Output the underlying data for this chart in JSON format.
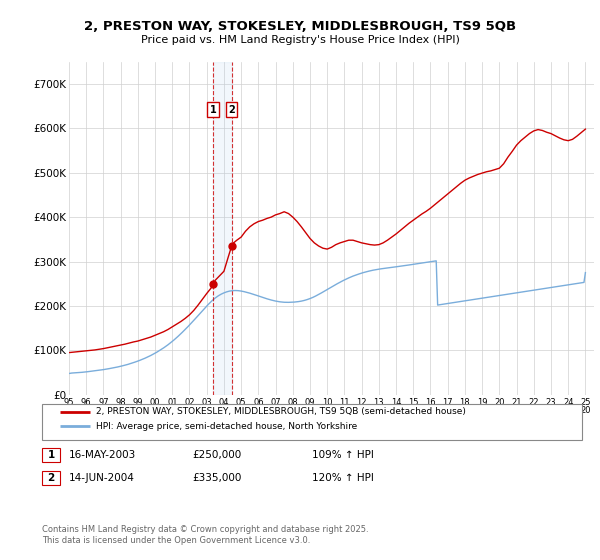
{
  "title_line1": "2, PRESTON WAY, STOKESLEY, MIDDLESBROUGH, TS9 5QB",
  "title_line2": "Price paid vs. HM Land Registry's House Price Index (HPI)",
  "ylim": [
    0,
    750000
  ],
  "yticks": [
    0,
    100000,
    200000,
    300000,
    400000,
    500000,
    600000,
    700000
  ],
  "ytick_labels": [
    "£0",
    "£100K",
    "£200K",
    "£300K",
    "£400K",
    "£500K",
    "£600K",
    "£700K"
  ],
  "xlim_start": 1995.0,
  "xlim_end": 2025.5,
  "sale1_date": 2003.37,
  "sale1_price": 250000,
  "sale1_label": "1",
  "sale1_date_str": "16-MAY-2003",
  "sale1_amount_str": "£250,000",
  "sale1_hpi_str": "109% ↑ HPI",
  "sale2_date": 2004.45,
  "sale2_price": 335000,
  "sale2_label": "2",
  "sale2_date_str": "14-JUN-2004",
  "sale2_amount_str": "£335,000",
  "sale2_hpi_str": "120% ↑ HPI",
  "hpi_color": "#7aaddb",
  "price_color": "#cc0000",
  "legend_label_price": "2, PRESTON WAY, STOKESLEY, MIDDLESBROUGH, TS9 5QB (semi-detached house)",
  "legend_label_hpi": "HPI: Average price, semi-detached house, North Yorkshire",
  "footnote": "Contains HM Land Registry data © Crown copyright and database right 2025.\nThis data is licensed under the Open Government Licence v3.0.",
  "hpi_x": [
    1995.0,
    1995.083,
    1995.167,
    1995.25,
    1995.333,
    1995.417,
    1995.5,
    1995.583,
    1995.667,
    1995.75,
    1995.833,
    1995.917,
    1996.0,
    1996.083,
    1996.167,
    1996.25,
    1996.333,
    1996.417,
    1996.5,
    1996.583,
    1996.667,
    1996.75,
    1996.833,
    1996.917,
    1997.0,
    1997.083,
    1997.167,
    1997.25,
    1997.333,
    1997.417,
    1997.5,
    1997.583,
    1997.667,
    1997.75,
    1997.833,
    1997.917,
    1998.0,
    1998.083,
    1998.167,
    1998.25,
    1998.333,
    1998.417,
    1998.5,
    1998.583,
    1998.667,
    1998.75,
    1998.833,
    1998.917,
    1999.0,
    1999.083,
    1999.167,
    1999.25,
    1999.333,
    1999.417,
    1999.5,
    1999.583,
    1999.667,
    1999.75,
    1999.833,
    1999.917,
    2000.0,
    2000.083,
    2000.167,
    2000.25,
    2000.333,
    2000.417,
    2000.5,
    2000.583,
    2000.667,
    2000.75,
    2000.833,
    2000.917,
    2001.0,
    2001.083,
    2001.167,
    2001.25,
    2001.333,
    2001.417,
    2001.5,
    2001.583,
    2001.667,
    2001.75,
    2001.833,
    2001.917,
    2002.0,
    2002.083,
    2002.167,
    2002.25,
    2002.333,
    2002.417,
    2002.5,
    2002.583,
    2002.667,
    2002.75,
    2002.833,
    2002.917,
    2003.0,
    2003.083,
    2003.167,
    2003.25,
    2003.333,
    2003.417,
    2003.5,
    2003.583,
    2003.667,
    2003.75,
    2003.833,
    2003.917,
    2004.0,
    2004.083,
    2004.167,
    2004.25,
    2004.333,
    2004.417,
    2004.5,
    2004.583,
    2004.667,
    2004.75,
    2004.833,
    2004.917,
    2005.0,
    2005.083,
    2005.167,
    2005.25,
    2005.333,
    2005.417,
    2005.5,
    2005.583,
    2005.667,
    2005.75,
    2005.833,
    2005.917,
    2006.0,
    2006.083,
    2006.167,
    2006.25,
    2006.333,
    2006.417,
    2006.5,
    2006.583,
    2006.667,
    2006.75,
    2006.833,
    2006.917,
    2007.0,
    2007.083,
    2007.167,
    2007.25,
    2007.333,
    2007.417,
    2007.5,
    2007.583,
    2007.667,
    2007.75,
    2007.833,
    2007.917,
    2008.0,
    2008.083,
    2008.167,
    2008.25,
    2008.333,
    2008.417,
    2008.5,
    2008.583,
    2008.667,
    2008.75,
    2008.833,
    2008.917,
    2009.0,
    2009.083,
    2009.167,
    2009.25,
    2009.333,
    2009.417,
    2009.5,
    2009.583,
    2009.667,
    2009.75,
    2009.833,
    2009.917,
    2010.0,
    2010.083,
    2010.167,
    2010.25,
    2010.333,
    2010.417,
    2010.5,
    2010.583,
    2010.667,
    2010.75,
    2010.833,
    2010.917,
    2011.0,
    2011.083,
    2011.167,
    2011.25,
    2011.333,
    2011.417,
    2011.5,
    2011.583,
    2011.667,
    2011.75,
    2011.833,
    2011.917,
    2012.0,
    2012.083,
    2012.167,
    2012.25,
    2012.333,
    2012.417,
    2012.5,
    2012.583,
    2012.667,
    2012.75,
    2012.833,
    2012.917,
    2013.0,
    2013.083,
    2013.167,
    2013.25,
    2013.333,
    2013.417,
    2013.5,
    2013.583,
    2013.667,
    2013.75,
    2013.833,
    2013.917,
    2014.0,
    2014.083,
    2014.167,
    2014.25,
    2014.333,
    2014.417,
    2014.5,
    2014.583,
    2014.667,
    2014.75,
    2014.833,
    2014.917,
    2015.0,
    2015.083,
    2015.167,
    2015.25,
    2015.333,
    2015.417,
    2015.5,
    2015.583,
    2015.667,
    2015.75,
    2015.833,
    2015.917,
    2016.0,
    2016.083,
    2016.167,
    2016.25,
    2016.333,
    2016.417,
    2016.5,
    2016.583,
    2016.667,
    2016.75,
    2016.833,
    2016.917,
    2017.0,
    2017.083,
    2017.167,
    2017.25,
    2017.333,
    2017.417,
    2017.5,
    2017.583,
    2017.667,
    2017.75,
    2017.833,
    2017.917,
    2018.0,
    2018.083,
    2018.167,
    2018.25,
    2018.333,
    2018.417,
    2018.5,
    2018.583,
    2018.667,
    2018.75,
    2018.833,
    2018.917,
    2019.0,
    2019.083,
    2019.167,
    2019.25,
    2019.333,
    2019.417,
    2019.5,
    2019.583,
    2019.667,
    2019.75,
    2019.833,
    2019.917,
    2020.0,
    2020.083,
    2020.167,
    2020.25,
    2020.333,
    2020.417,
    2020.5,
    2020.583,
    2020.667,
    2020.75,
    2020.833,
    2020.917,
    2021.0,
    2021.083,
    2021.167,
    2021.25,
    2021.333,
    2021.417,
    2021.5,
    2021.583,
    2021.667,
    2021.75,
    2021.833,
    2021.917,
    2022.0,
    2022.083,
    2022.167,
    2022.25,
    2022.333,
    2022.417,
    2022.5,
    2022.583,
    2022.667,
    2022.75,
    2022.833,
    2022.917,
    2023.0,
    2023.083,
    2023.167,
    2023.25,
    2023.333,
    2023.417,
    2023.5,
    2023.583,
    2023.667,
    2023.75,
    2023.833,
    2023.917,
    2024.0,
    2024.083,
    2024.167,
    2024.25,
    2024.333,
    2024.417,
    2024.5,
    2024.583,
    2024.667,
    2024.75,
    2024.833,
    2024.917,
    2025.0
  ],
  "hpi_y": [
    48000,
    48500,
    49000,
    49200,
    49400,
    49600,
    50000,
    50200,
    50400,
    50600,
    50900,
    51200,
    51600,
    52000,
    52500,
    52900,
    53300,
    53700,
    54200,
    54600,
    55000,
    55400,
    55800,
    56200,
    56700,
    57200,
    57700,
    58300,
    58900,
    59500,
    60100,
    60700,
    61300,
    62000,
    62700,
    63400,
    64200,
    65000,
    65800,
    66600,
    67500,
    68400,
    69400,
    70400,
    71400,
    72500,
    73600,
    74700,
    75900,
    77100,
    78400,
    79700,
    81000,
    82400,
    83900,
    85400,
    86900,
    88500,
    90200,
    91900,
    93600,
    95500,
    97500,
    99500,
    101500,
    103500,
    105700,
    107900,
    110200,
    112600,
    115100,
    117600,
    120200,
    122900,
    125700,
    128600,
    131500,
    134500,
    137600,
    140700,
    143900,
    147100,
    150400,
    153700,
    157100,
    160500,
    164000,
    167500,
    171100,
    174700,
    178300,
    181900,
    185500,
    189100,
    192700,
    196200,
    199700,
    203100,
    206400,
    209600,
    212600,
    215400,
    218000,
    220400,
    222600,
    224600,
    226400,
    228000,
    229400,
    230700,
    231800,
    232700,
    233500,
    234000,
    234400,
    234600,
    234700,
    234600,
    234400,
    234000,
    233500,
    232900,
    232200,
    231400,
    230600,
    229700,
    228800,
    227800,
    226800,
    225800,
    224700,
    223600,
    222500,
    221400,
    220300,
    219200,
    218100,
    217100,
    216100,
    215100,
    214200,
    213300,
    212500,
    211700,
    211000,
    210400,
    209800,
    209300,
    208900,
    208600,
    208300,
    208200,
    208100,
    208100,
    208200,
    208300,
    208500,
    208700,
    209000,
    209400,
    209800,
    210300,
    210900,
    211600,
    212400,
    213300,
    214300,
    215400,
    216600,
    217900,
    219300,
    220800,
    222400,
    224100,
    225800,
    227600,
    229400,
    231200,
    233100,
    235000,
    236900,
    238800,
    240700,
    242600,
    244500,
    246400,
    248200,
    250000,
    251800,
    253500,
    255200,
    256900,
    258500,
    260100,
    261600,
    263100,
    264500,
    265900,
    267200,
    268400,
    269600,
    270700,
    271800,
    272900,
    273900,
    274900,
    275800,
    276700,
    277500,
    278300,
    279100,
    279800,
    280500,
    281100,
    281700,
    282300,
    282800,
    283300,
    283800,
    284200,
    284600,
    285100,
    285500,
    285900,
    286400,
    286800,
    287200,
    287700,
    288100,
    288600,
    289000,
    289500,
    289900,
    290400,
    290800,
    291300,
    291700,
    292200,
    292700,
    293100,
    293600,
    294000,
    294500,
    295000,
    295500,
    296000,
    296500,
    297000,
    297500,
    298000,
    298500,
    299000,
    299500,
    300000,
    300500,
    301000,
    301500,
    202000,
    202500,
    203000,
    203500,
    204000,
    204500,
    205000,
    205500,
    206000,
    206500,
    207000,
    207500,
    208000,
    208500,
    209000,
    209500,
    210000,
    210500,
    211000,
    211500,
    212000,
    212500,
    213000,
    213500,
    214000,
    214500,
    215000,
    215500,
    216000,
    216500,
    217000,
    217500,
    218000,
    218500,
    219000,
    219500,
    220000,
    220500,
    221000,
    221500,
    222000,
    222500,
    223000,
    223500,
    224000,
    224500,
    225000,
    225500,
    226000,
    226500,
    227000,
    227500,
    228000,
    228500,
    229000,
    229500,
    230000,
    230500,
    231000,
    231500,
    232000,
    232500,
    233000,
    233500,
    234000,
    234500,
    235000,
    235500,
    236000,
    236500,
    237000,
    237500,
    238000,
    238500,
    239000,
    239500,
    240000,
    240500,
    241000,
    241500,
    242000,
    242500,
    243000,
    243500,
    244000,
    244500,
    245000,
    245500,
    246000,
    246500,
    247000,
    247500,
    248000,
    248500,
    249000,
    249500,
    250000,
    250500,
    251000,
    251500,
    252000,
    252500,
    253000,
    275000
  ],
  "price_x": [
    1995.0,
    1995.25,
    1995.5,
    1995.75,
    1996.0,
    1996.25,
    1996.5,
    1996.75,
    1997.0,
    1997.25,
    1997.5,
    1997.75,
    1998.0,
    1998.25,
    1998.5,
    1998.75,
    1999.0,
    1999.25,
    1999.5,
    1999.75,
    2000.0,
    2000.25,
    2000.5,
    2000.75,
    2001.0,
    2001.25,
    2001.5,
    2001.75,
    2002.0,
    2002.25,
    2002.5,
    2002.75,
    2003.0,
    2003.25,
    2003.37,
    2003.5,
    2003.75,
    2004.0,
    2004.25,
    2004.45,
    2004.5,
    2004.75,
    2005.0,
    2005.25,
    2005.5,
    2005.75,
    2006.0,
    2006.25,
    2006.5,
    2006.75,
    2007.0,
    2007.25,
    2007.5,
    2007.75,
    2008.0,
    2008.25,
    2008.5,
    2008.75,
    2009.0,
    2009.25,
    2009.5,
    2009.75,
    2010.0,
    2010.25,
    2010.5,
    2010.75,
    2011.0,
    2011.25,
    2011.5,
    2011.75,
    2012.0,
    2012.25,
    2012.5,
    2012.75,
    2013.0,
    2013.25,
    2013.5,
    2013.75,
    2014.0,
    2014.25,
    2014.5,
    2014.75,
    2015.0,
    2015.25,
    2015.5,
    2015.75,
    2016.0,
    2016.25,
    2016.5,
    2016.75,
    2017.0,
    2017.25,
    2017.5,
    2017.75,
    2018.0,
    2018.25,
    2018.5,
    2018.75,
    2019.0,
    2019.25,
    2019.5,
    2019.75,
    2020.0,
    2020.25,
    2020.5,
    2020.75,
    2021.0,
    2021.25,
    2021.5,
    2021.75,
    2022.0,
    2022.25,
    2022.5,
    2022.75,
    2023.0,
    2023.25,
    2023.5,
    2023.75,
    2024.0,
    2024.25,
    2024.5,
    2024.75,
    2025.0
  ],
  "price_y": [
    95000,
    96000,
    97000,
    98000,
    99000,
    100000,
    101000,
    102500,
    104000,
    106000,
    108000,
    110000,
    112000,
    114000,
    116500,
    119000,
    121000,
    124000,
    127000,
    130000,
    134000,
    138000,
    142000,
    147000,
    153000,
    159000,
    165000,
    172000,
    180000,
    190000,
    202000,
    215000,
    228000,
    240000,
    250000,
    258000,
    268000,
    278000,
    310000,
    335000,
    340000,
    348000,
    355000,
    368000,
    378000,
    385000,
    390000,
    393000,
    397000,
    400000,
    405000,
    408000,
    412000,
    408000,
    400000,
    390000,
    378000,
    365000,
    352000,
    342000,
    335000,
    330000,
    328000,
    332000,
    338000,
    342000,
    345000,
    348000,
    348000,
    345000,
    342000,
    340000,
    338000,
    337000,
    338000,
    342000,
    348000,
    355000,
    362000,
    370000,
    378000,
    386000,
    393000,
    400000,
    407000,
    413000,
    420000,
    428000,
    436000,
    444000,
    452000,
    460000,
    468000,
    476000,
    483000,
    488000,
    492000,
    496000,
    499000,
    502000,
    504000,
    507000,
    510000,
    520000,
    535000,
    548000,
    562000,
    572000,
    580000,
    588000,
    594000,
    597000,
    595000,
    591000,
    588000,
    583000,
    578000,
    574000,
    572000,
    575000,
    582000,
    590000,
    598000
  ]
}
